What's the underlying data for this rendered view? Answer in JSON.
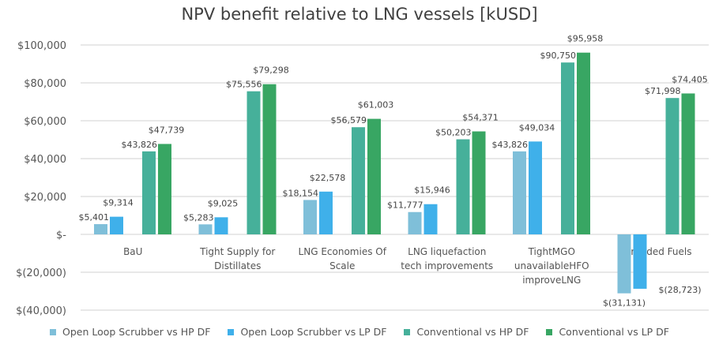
{
  "chart_data": {
    "type": "bar",
    "title": "NPV benefit relative to LNG vessels [kUSD]",
    "xlabel": "",
    "ylabel": "",
    "ylim": [
      -40000,
      100000
    ],
    "yticks": [
      100000,
      80000,
      60000,
      40000,
      20000,
      0,
      -20000,
      -40000
    ],
    "ytick_labels": [
      "$100,000",
      "$80,000",
      "$60,000",
      "$40,000",
      "$20,000",
      "$-",
      "$(20,000)",
      "$(40,000)"
    ],
    "grid": true,
    "legend_position": "bottom",
    "categories": [
      [
        "BaU"
      ],
      [
        "Tight Supply for",
        "Distillates"
      ],
      [
        "LNG Economies Of",
        "Scale"
      ],
      [
        "LNG liquefaction",
        "tech improvements"
      ],
      [
        "TightMGO",
        "unavailableHFO",
        "improveLNG"
      ],
      [
        "Stranded Fuels"
      ]
    ],
    "series": [
      {
        "name": "Open Loop Scrubber  vs HP DF",
        "color": "#7fbfd9",
        "values": [
          5401,
          5283,
          18154,
          11777,
          43826,
          -31131
        ],
        "labels": [
          "$5,401",
          "$5,283",
          "$18,154",
          "$11,777",
          "$43,826",
          "$(31,131)"
        ]
      },
      {
        "name": "Open Loop Scrubber  vs LP DF",
        "color": "#3fb0ea",
        "values": [
          9314,
          9025,
          22578,
          15946,
          49034,
          -28723
        ],
        "labels": [
          "$9,314",
          "$9,025",
          "$22,578",
          "$15,946",
          "$49,034",
          "$(28,723)"
        ]
      },
      {
        "name": "Conventional  vs HP DF",
        "color": "#46b09a",
        "values": [
          43826,
          75556,
          56579,
          50203,
          90750,
          71998
        ],
        "labels": [
          "$43,826",
          "$75,556",
          "$56,579",
          "$50,203",
          "$90,750",
          "$71,998"
        ]
      },
      {
        "name": "Conventional  vs LP DF",
        "color": "#38a663",
        "values": [
          47739,
          79298,
          61003,
          54371,
          95958,
          74405
        ],
        "labels": [
          "$47,739",
          "$79,298",
          "$61,003",
          "$54,371",
          "$95,958",
          "$74,405"
        ]
      }
    ]
  }
}
